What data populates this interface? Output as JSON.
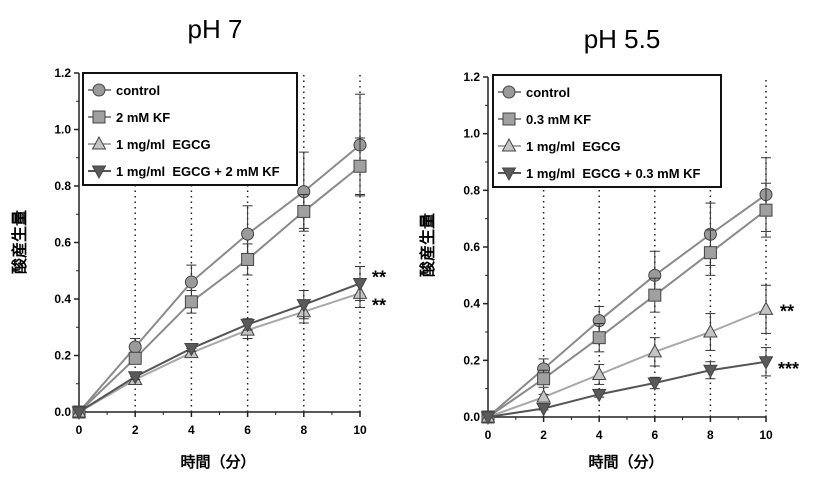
{
  "chart_data": [
    {
      "type": "line",
      "title": "pH 7",
      "xlabel": "時間（分）",
      "ylabel": "酸産生量",
      "x": [
        0,
        2,
        4,
        6,
        8,
        10
      ],
      "xticks": [
        "0",
        "2",
        "4",
        "6",
        "8",
        "10"
      ],
      "yticks": [
        "0.0",
        "0.2",
        "0.4",
        "0.6",
        "0.8",
        "1.0",
        "1.2"
      ],
      "xlim": [
        0,
        10
      ],
      "ylim": [
        0,
        1.2
      ],
      "grid": "vertical dotted lines at each x tick",
      "legend": "top-left",
      "series": [
        {
          "name": "control",
          "marker": "circle",
          "color": "#8a8a8a",
          "values": [
            0,
            0.23,
            0.46,
            0.63,
            0.78,
            0.945
          ],
          "errors": [
            0,
            0.03,
            0.06,
            0.1,
            0.14,
            0.18
          ]
        },
        {
          "name": "2 mM KF",
          "marker": "square",
          "color": "#8a8a8a",
          "values": [
            0,
            0.19,
            0.39,
            0.54,
            0.71,
            0.87
          ],
          "errors": [
            0,
            0.02,
            0.04,
            0.055,
            0.06,
            0.1
          ]
        },
        {
          "name": "1 mg/ml  EGCG",
          "marker": "triangle-up",
          "color": "#a8a8a8",
          "values": [
            0,
            0.115,
            0.21,
            0.29,
            0.355,
            0.42
          ],
          "errors": [
            0,
            0.01,
            0.015,
            0.03,
            0.04,
            0.05
          ]
        },
        {
          "name": "1 mg/ml  EGCG + 2 mM KF",
          "marker": "triangle-down",
          "color": "#555555",
          "values": [
            0,
            0.125,
            0.225,
            0.31,
            0.38,
            0.455
          ],
          "errors": [
            0,
            0.01,
            0.01,
            0.02,
            0.05,
            0.06
          ]
        }
      ],
      "annotations": [
        {
          "text": "**",
          "series": "1 mg/ml  EGCG + 2 mM KF",
          "x": 10
        },
        {
          "text": "**",
          "series": "1 mg/ml  EGCG",
          "x": 10
        }
      ]
    },
    {
      "type": "line",
      "title": "pH 5.5",
      "xlabel": "時間（分）",
      "ylabel": "酸産生量",
      "x": [
        0,
        2,
        4,
        6,
        8,
        10
      ],
      "xticks": [
        "0",
        "2",
        "4",
        "6",
        "8",
        "10"
      ],
      "yticks": [
        "0.0",
        "0.2",
        "0.4",
        "0.6",
        "0.8",
        "1.0",
        "1.2"
      ],
      "xlim": [
        0,
        10
      ],
      "ylim": [
        0,
        1.2
      ],
      "grid": "vertical dotted lines at each x tick",
      "legend": "top-left",
      "series": [
        {
          "name": "control",
          "marker": "circle",
          "color": "#8a8a8a",
          "values": [
            0,
            0.17,
            0.34,
            0.5,
            0.645,
            0.785
          ],
          "errors": [
            0,
            0.035,
            0.05,
            0.085,
            0.11,
            0.13
          ]
        },
        {
          "name": "0.3 mM KF",
          "marker": "square",
          "color": "#8a8a8a",
          "values": [
            0,
            0.135,
            0.28,
            0.43,
            0.58,
            0.73
          ],
          "errors": [
            0,
            0.03,
            0.05,
            0.06,
            0.08,
            0.095
          ]
        },
        {
          "name": "1 mg/ml  EGCG",
          "marker": "triangle-up",
          "color": "#a8a8a8",
          "values": [
            0,
            0.07,
            0.15,
            0.23,
            0.3,
            0.38
          ],
          "errors": [
            0,
            0.01,
            0.035,
            0.05,
            0.065,
            0.085
          ]
        },
        {
          "name": "1 mg/ml  EGCG + 0.3 mM KF",
          "marker": "triangle-down",
          "color": "#555555",
          "values": [
            0,
            0.03,
            0.08,
            0.12,
            0.165,
            0.195
          ],
          "errors": [
            0,
            0.005,
            0.01,
            0.02,
            0.03,
            0.05
          ]
        }
      ],
      "annotations": [
        {
          "text": "**",
          "series": "1 mg/ml  EGCG",
          "x": 10
        },
        {
          "text": "***",
          "series": "1 mg/ml  EGCG + 0.3 mM KF",
          "x": 10
        }
      ]
    }
  ]
}
